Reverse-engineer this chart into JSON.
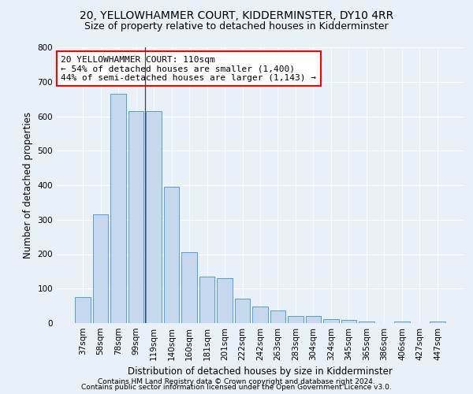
{
  "title": "20, YELLOWHAMMER COURT, KIDDERMINSTER, DY10 4RR",
  "subtitle": "Size of property relative to detached houses in Kidderminster",
  "xlabel": "Distribution of detached houses by size in Kidderminster",
  "ylabel": "Number of detached properties",
  "categories": [
    "37sqm",
    "58sqm",
    "78sqm",
    "99sqm",
    "119sqm",
    "140sqm",
    "160sqm",
    "181sqm",
    "201sqm",
    "222sqm",
    "242sqm",
    "263sqm",
    "283sqm",
    "304sqm",
    "324sqm",
    "345sqm",
    "365sqm",
    "386sqm",
    "406sqm",
    "427sqm",
    "447sqm"
  ],
  "values": [
    75,
    315,
    665,
    615,
    615,
    395,
    205,
    135,
    130,
    70,
    47,
    37,
    20,
    20,
    12,
    10,
    5,
    0,
    5,
    0,
    5
  ],
  "bar_color": "#c5d8ed",
  "bar_edge_color": "#5b9bd5",
  "background_color": "#e8f0f8",
  "vline_x_index": 4,
  "annotation_line1": "20 YELLOWHAMMER COURT: 110sqm",
  "annotation_line2": "← 54% of detached houses are smaller (1,400)",
  "annotation_line3": "44% of semi-detached houses are larger (1,143) →",
  "annotation_box_color": "white",
  "annotation_box_edge_color": "red",
  "ylim": [
    0,
    800
  ],
  "yticks": [
    0,
    100,
    200,
    300,
    400,
    500,
    600,
    700,
    800
  ],
  "footnote1": "Contains HM Land Registry data © Crown copyright and database right 2024.",
  "footnote2": "Contains public sector information licensed under the Open Government Licence v3.0.",
  "title_fontsize": 10,
  "subtitle_fontsize": 9,
  "xlabel_fontsize": 8.5,
  "ylabel_fontsize": 8.5,
  "tick_fontsize": 7.5,
  "annotation_fontsize": 8,
  "footnote_fontsize": 6.5
}
